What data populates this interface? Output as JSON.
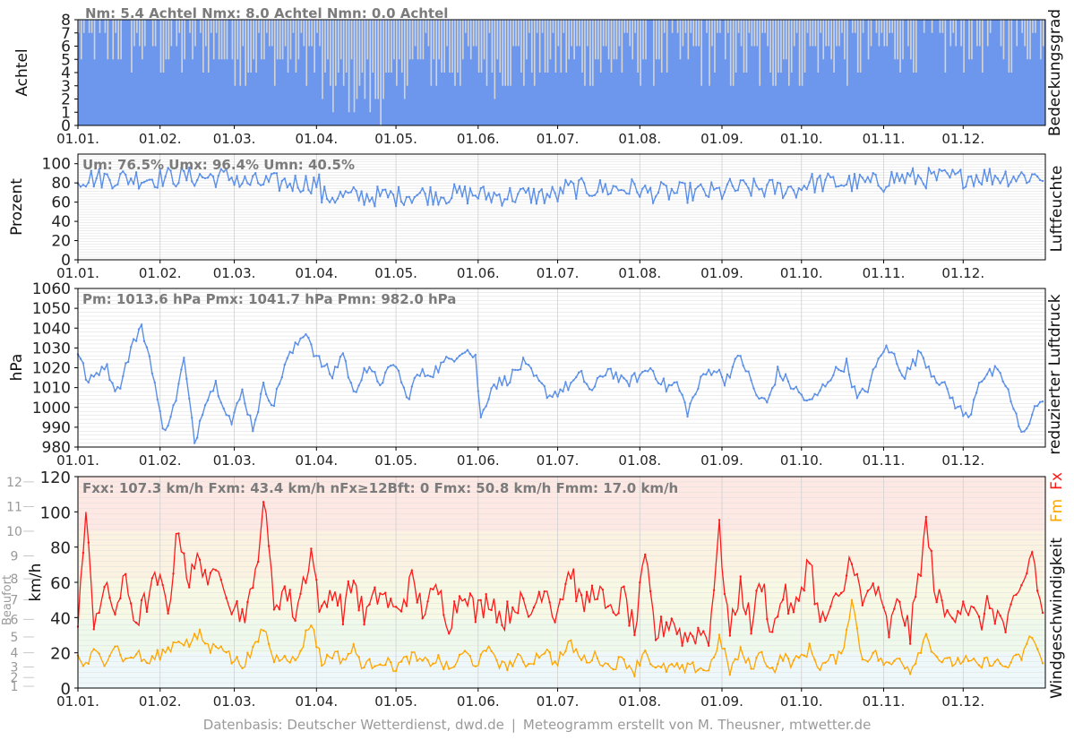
{
  "footer": {
    "left": "Datenbasis: Deutscher Wetterdienst, dwd.de",
    "separator": "|",
    "right": "Meteogramm erstellt von M. Theusner, mtwetter.de"
  },
  "colors": {
    "cloud": "#6d97ec",
    "cloud_gap": "#d4d4d4",
    "humidity": "#5b8fe8",
    "pressure": "#5b8fe8",
    "gust": "#ff1a1a",
    "wind_mean": "#ffa500",
    "stats_text": "#7b7b7b",
    "grid": "#e2e2e2"
  },
  "chart_data": [
    {
      "type": "bar",
      "id": "cloud",
      "ylabel": "Achtel",
      "side_label": "Bedeckungsgrad",
      "stats": "Nm: 5.4 Achtel     Nmx: 8.0 Achtel     Nmn: 0.0 Achtel",
      "ylim": [
        0,
        8
      ],
      "yticks": [
        "0",
        "1",
        "2",
        "3",
        "4",
        "5",
        "6",
        "7",
        "8"
      ],
      "xticks": [
        "01.01.",
        "01.02.",
        "01.03.",
        "01.04.",
        "01.05.",
        "01.06.",
        "01.07.",
        "01.08.",
        "01.09.",
        "01.10.",
        "01.11.",
        "01.12."
      ],
      "xtick_days": [
        0,
        31,
        59,
        90,
        120,
        151,
        181,
        212,
        243,
        273,
        304,
        334
      ],
      "grid": true,
      "monthly_mean": [
        6.3,
        5.8,
        5.0,
        2.8,
        4.6,
        4.9,
        5.1,
        5.5,
        4.9,
        5.7,
        6.3,
        6.7
      ]
    },
    {
      "type": "line",
      "id": "humidity",
      "ylabel": "Prozent",
      "side_label": "Luftfeuchte",
      "stats": "Um: 76.5%     Umx: 96.4%     Umn: 40.5%",
      "ylim": [
        0,
        110
      ],
      "yticks": [
        "0",
        "20",
        "40",
        "60",
        "80",
        "100"
      ],
      "ytick_values": [
        0,
        20,
        40,
        60,
        80,
        100
      ],
      "xticks": [
        "01.01.",
        "01.02.",
        "01.03.",
        "01.04.",
        "01.05.",
        "01.06.",
        "01.07.",
        "01.08.",
        "01.09.",
        "01.10.",
        "01.11.",
        "01.12."
      ],
      "xtick_days": [
        0,
        31,
        59,
        90,
        120,
        151,
        181,
        212,
        243,
        273,
        304,
        334
      ],
      "grid": true,
      "monthly_mean": [
        85,
        86,
        80,
        66,
        68,
        67,
        74,
        70,
        74,
        80,
        85,
        87
      ]
    },
    {
      "type": "line",
      "id": "pressure",
      "ylabel": "hPa",
      "side_label": "reduzierter Luftdruck",
      "stats": "Pm: 1013.6 hPa     Pmx: 1041.7 hPa     Pmn: 982.0 hPa",
      "ylim": [
        980,
        1060
      ],
      "yticks": [
        "980",
        "990",
        "1000",
        "1010",
        "1020",
        "1030",
        "1040",
        "1050",
        "1060"
      ],
      "ytick_values": [
        980,
        990,
        1000,
        1010,
        1020,
        1030,
        1040,
        1050,
        1060
      ],
      "xticks": [
        "01.01.",
        "01.02.",
        "01.03.",
        "01.04.",
        "01.05.",
        "01.06.",
        "01.07.",
        "01.08.",
        "01.09.",
        "01.10.",
        "01.11.",
        "01.12."
      ],
      "xtick_days": [
        0,
        31,
        59,
        90,
        120,
        151,
        181,
        212,
        243,
        273,
        304,
        334
      ],
      "grid": true,
      "points": [
        [
          0,
          1028
        ],
        [
          4,
          1012
        ],
        [
          10,
          1022
        ],
        [
          15,
          1008
        ],
        [
          20,
          1030
        ],
        [
          24,
          1041
        ],
        [
          28,
          1020
        ],
        [
          32,
          988
        ],
        [
          36,
          999
        ],
        [
          40,
          1024
        ],
        [
          44,
          982
        ],
        [
          48,
          1004
        ],
        [
          52,
          1012
        ],
        [
          58,
          992
        ],
        [
          62,
          1008
        ],
        [
          66,
          990
        ],
        [
          70,
          1010
        ],
        [
          74,
          1002
        ],
        [
          78,
          1022
        ],
        [
          82,
          1030
        ],
        [
          86,
          1039
        ],
        [
          90,
          1025
        ],
        [
          96,
          1016
        ],
        [
          100,
          1028
        ],
        [
          104,
          1006
        ],
        [
          108,
          1020
        ],
        [
          114,
          1013
        ],
        [
          120,
          1022
        ],
        [
          124,
          1004
        ],
        [
          128,
          1016
        ],
        [
          134,
          1018
        ],
        [
          140,
          1024
        ],
        [
          146,
          1030
        ],
        [
          150,
          1025
        ],
        [
          152,
          994
        ],
        [
          156,
          1011
        ],
        [
          162,
          1014
        ],
        [
          168,
          1022
        ],
        [
          174,
          1012
        ],
        [
          178,
          1006
        ],
        [
          184,
          1010
        ],
        [
          190,
          1016
        ],
        [
          194,
          1008
        ],
        [
          200,
          1020
        ],
        [
          206,
          1012
        ],
        [
          212,
          1016
        ],
        [
          216,
          1020
        ],
        [
          222,
          1010
        ],
        [
          226,
          1012
        ],
        [
          230,
          998
        ],
        [
          236,
          1016
        ],
        [
          240,
          1020
        ],
        [
          244,
          1014
        ],
        [
          250,
          1026
        ],
        [
          256,
          1006
        ],
        [
          260,
          1002
        ],
        [
          264,
          1018
        ],
        [
          270,
          1010
        ],
        [
          276,
          1002
        ],
        [
          280,
          1008
        ],
        [
          284,
          1016
        ],
        [
          290,
          1022
        ],
        [
          294,
          1004
        ],
        [
          298,
          1010
        ],
        [
          304,
          1030
        ],
        [
          308,
          1026
        ],
        [
          312,
          1016
        ],
        [
          318,
          1028
        ],
        [
          322,
          1018
        ],
        [
          326,
          1012
        ],
        [
          332,
          1000
        ],
        [
          336,
          994
        ],
        [
          340,
          1014
        ],
        [
          346,
          1018
        ],
        [
          350,
          1012
        ],
        [
          356,
          986
        ],
        [
          362,
          1002
        ],
        [
          365,
          1000
        ]
      ]
    },
    {
      "type": "line",
      "id": "wind",
      "ylabel": "km/h",
      "ylabel2": "Beaufort",
      "side_label_prefix": "Windgeschwindigkeit",
      "side_label_fm": "Fm",
      "side_label_fx": "Fx",
      "stats": "Fxx: 107.3 km/h     Fxm: 43.4 km/h     nFx≥12Bft: 0     Fmx: 50.8 km/h     Fmm: 17.0 km/h",
      "ylim": [
        0,
        120
      ],
      "yticks": [
        "0",
        "20",
        "40",
        "60",
        "80",
        "100",
        "120"
      ],
      "ytick_values": [
        0,
        20,
        40,
        60,
        80,
        100,
        120
      ],
      "beaufort_ticks": [
        "1",
        "2",
        "3",
        "4",
        "5",
        "6",
        "7",
        "8",
        "9",
        "10",
        "11",
        "12"
      ],
      "beaufort_values": [
        1,
        6,
        12,
        20,
        29,
        39,
        50,
        62,
        75,
        89,
        103,
        117
      ],
      "xticks": [
        "01.01.",
        "01.02.",
        "01.03.",
        "01.04.",
        "01.05.",
        "01.06.",
        "01.07.",
        "01.08.",
        "01.09.",
        "01.10.",
        "01.11.",
        "01.12."
      ],
      "xtick_days": [
        0,
        31,
        59,
        90,
        120,
        151,
        181,
        212,
        243,
        273,
        304,
        334
      ],
      "grid": true,
      "series": [
        {
          "name": "Fx",
          "points": [
            [
              0,
              42
            ],
            [
              3,
              95
            ],
            [
              6,
              40
            ],
            [
              10,
              55
            ],
            [
              14,
              45
            ],
            [
              18,
              60
            ],
            [
              22,
              38
            ],
            [
              26,
              50
            ],
            [
              30,
              62
            ],
            [
              34,
              45
            ],
            [
              38,
              92
            ],
            [
              42,
              60
            ],
            [
              46,
              75
            ],
            [
              50,
              58
            ],
            [
              54,
              68
            ],
            [
              58,
              48
            ],
            [
              62,
              42
            ],
            [
              66,
              52
            ],
            [
              70,
              107
            ],
            [
              74,
              48
            ],
            [
              78,
              56
            ],
            [
              82,
              42
            ],
            [
              88,
              78
            ],
            [
              92,
              40
            ],
            [
              96,
              58
            ],
            [
              100,
              44
            ],
            [
              104,
              62
            ],
            [
              108,
              40
            ],
            [
              114,
              55
            ],
            [
              120,
              42
            ],
            [
              126,
              60
            ],
            [
              130,
              45
            ],
            [
              136,
              55
            ],
            [
              140,
              38
            ],
            [
              146,
              58
            ],
            [
              150,
              42
            ],
            [
              156,
              52
            ],
            [
              160,
              38
            ],
            [
              166,
              50
            ],
            [
              170,
              40
            ],
            [
              176,
              60
            ],
            [
              180,
              42
            ],
            [
              186,
              68
            ],
            [
              190,
              45
            ],
            [
              196,
              58
            ],
            [
              200,
              40
            ],
            [
              206,
              52
            ],
            [
              210,
              32
            ],
            [
              214,
              72
            ],
            [
              218,
              30
            ],
            [
              224,
              40
            ],
            [
              228,
              28
            ],
            [
              234,
              32
            ],
            [
              238,
              30
            ],
            [
              242,
              88
            ],
            [
              246,
              30
            ],
            [
              250,
              58
            ],
            [
              254,
              36
            ],
            [
              258,
              62
            ],
            [
              262,
              30
            ],
            [
              266,
              55
            ],
            [
              270,
              40
            ],
            [
              276,
              75
            ],
            [
              280,
              35
            ],
            [
              284,
              45
            ],
            [
              288,
              50
            ],
            [
              292,
              78
            ],
            [
              296,
              45
            ],
            [
              300,
              60
            ],
            [
              306,
              32
            ],
            [
              310,
              50
            ],
            [
              314,
              30
            ],
            [
              320,
              92
            ],
            [
              324,
              52
            ],
            [
              328,
              40
            ],
            [
              334,
              50
            ],
            [
              340,
              36
            ],
            [
              344,
              48
            ],
            [
              350,
              34
            ],
            [
              356,
              55
            ],
            [
              360,
              78
            ],
            [
              364,
              40
            ]
          ]
        },
        {
          "name": "Fm",
          "points": [
            [
              0,
              18
            ],
            [
              3,
              12
            ],
            [
              6,
              20
            ],
            [
              10,
              16
            ],
            [
              14,
              25
            ],
            [
              18,
              15
            ],
            [
              22,
              20
            ],
            [
              26,
              14
            ],
            [
              30,
              18
            ],
            [
              34,
              22
            ],
            [
              38,
              28
            ],
            [
              42,
              25
            ],
            [
              46,
              30
            ],
            [
              50,
              22
            ],
            [
              54,
              26
            ],
            [
              58,
              16
            ],
            [
              62,
              14
            ],
            [
              66,
              20
            ],
            [
              70,
              35
            ],
            [
              74,
              16
            ],
            [
              78,
              20
            ],
            [
              82,
              14
            ],
            [
              88,
              38
            ],
            [
              92,
              14
            ],
            [
              96,
              20
            ],
            [
              100,
              16
            ],
            [
              104,
              22
            ],
            [
              108,
              12
            ],
            [
              114,
              16
            ],
            [
              120,
              12
            ],
            [
              126,
              18
            ],
            [
              130,
              14
            ],
            [
              136,
              16
            ],
            [
              140,
              10
            ],
            [
              146,
              20
            ],
            [
              150,
              14
            ],
            [
              156,
              22
            ],
            [
              160,
              12
            ],
            [
              166,
              16
            ],
            [
              170,
              14
            ],
            [
              176,
              22
            ],
            [
              180,
              14
            ],
            [
              186,
              25
            ],
            [
              190,
              16
            ],
            [
              196,
              18
            ],
            [
              200,
              12
            ],
            [
              206,
              16
            ],
            [
              210,
              10
            ],
            [
              214,
              22
            ],
            [
              218,
              10
            ],
            [
              224,
              12
            ],
            [
              228,
              10
            ],
            [
              234,
              12
            ],
            [
              238,
              10
            ],
            [
              242,
              28
            ],
            [
              246,
              10
            ],
            [
              250,
              20
            ],
            [
              254,
              12
            ],
            [
              258,
              20
            ],
            [
              262,
              10
            ],
            [
              266,
              18
            ],
            [
              270,
              14
            ],
            [
              276,
              22
            ],
            [
              280,
              12
            ],
            [
              284,
              16
            ],
            [
              288,
              18
            ],
            [
              292,
              50
            ],
            [
              296,
              16
            ],
            [
              300,
              20
            ],
            [
              306,
              12
            ],
            [
              310,
              18
            ],
            [
              314,
              10
            ],
            [
              320,
              30
            ],
            [
              324,
              18
            ],
            [
              328,
              14
            ],
            [
              334,
              16
            ],
            [
              340,
              12
            ],
            [
              344,
              16
            ],
            [
              350,
              12
            ],
            [
              356,
              18
            ],
            [
              360,
              30
            ],
            [
              364,
              14
            ]
          ]
        }
      ]
    }
  ]
}
